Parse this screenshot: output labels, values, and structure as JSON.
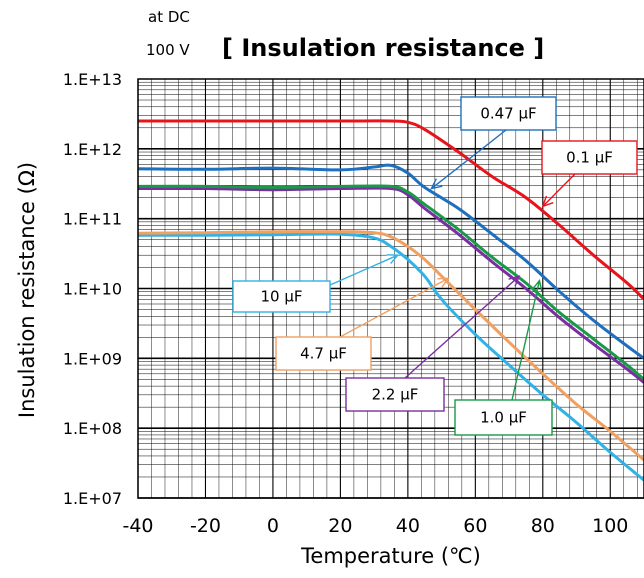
{
  "chart_data": {
    "type": "line",
    "title": "[ Insulation resistance ]",
    "subtitle_line1": "at DC",
    "subtitle_line2": "100 V",
    "xlabel": "Temperature (℃)",
    "ylabel": "Insulation resistance (Ω)",
    "xlim": [
      -40,
      110
    ],
    "ylim_exponents": [
      7,
      13
    ],
    "y_scale": "log",
    "grid": true,
    "x_ticks": [
      "-40",
      "-20",
      "0",
      "20",
      "40",
      "60",
      "80",
      "100"
    ],
    "y_ticks": [
      "1.E+07",
      "1.E+08",
      "1.E+09",
      "1.E+10",
      "1.E+11",
      "1.E+12",
      "1.E+13"
    ],
    "series": [
      {
        "name": "0.1 μF",
        "color": "#e8141c",
        "x": [
          -40,
          -20,
          0,
          20,
          35,
          40,
          45,
          55,
          65,
          75,
          85,
          95,
          105,
          110
        ],
        "y": [
          2500000000000.0,
          2500000000000.0,
          2500000000000.0,
          2500000000000.0,
          2500000000000.0,
          2400000000000.0,
          1900000000000.0,
          900000000000.0,
          400000000000.0,
          200000000000.0,
          80000000000.0,
          30000000000.0,
          12000000000.0,
          7000000000.0
        ]
      },
      {
        "name": "0.47 μF",
        "color": "#1f6fbf",
        "x": [
          -40,
          -20,
          0,
          20,
          30,
          35,
          40,
          45,
          55,
          65,
          75,
          85,
          95,
          105,
          110
        ],
        "y": [
          520000000000.0,
          510000000000.0,
          530000000000.0,
          500000000000.0,
          550000000000.0,
          580000000000.0,
          450000000000.0,
          280000000000.0,
          140000000000.0,
          60000000000.0,
          25000000000.0,
          9000000000.0,
          3500000000.0,
          1500000000.0,
          1000000000.0
        ]
      },
      {
        "name": "2.2 μF",
        "color": "#7a2fa0",
        "x": [
          -40,
          -20,
          0,
          20,
          35,
          40,
          45,
          55,
          65,
          75,
          85,
          95,
          105,
          110
        ],
        "y": [
          270000000000.0,
          270000000000.0,
          260000000000.0,
          270000000000.0,
          270000000000.0,
          220000000000.0,
          140000000000.0,
          60000000000.0,
          24000000000.0,
          10000000000.0,
          3800000000.0,
          1600000000.0,
          700000000.0,
          450000000.0
        ]
      },
      {
        "name": "1.0 μF",
        "color": "#1a9a48",
        "x": [
          -40,
          -20,
          0,
          20,
          35,
          40,
          45,
          55,
          65,
          75,
          85,
          95,
          105,
          110
        ],
        "y": [
          290000000000.0,
          290000000000.0,
          280000000000.0,
          290000000000.0,
          290000000000.0,
          240000000000.0,
          160000000000.0,
          70000000000.0,
          28000000000.0,
          12000000000.0,
          4500000000.0,
          1900000000.0,
          800000000.0,
          500000000.0
        ]
      },
      {
        "name": "10 μF",
        "color": "#30b2e6",
        "x": [
          -40,
          -20,
          0,
          20,
          30,
          35,
          40,
          45,
          50,
          60,
          70,
          80,
          90,
          100,
          110
        ],
        "y": [
          58000000000.0,
          58000000000.0,
          59000000000.0,
          60000000000.0,
          53000000000.0,
          40000000000.0,
          26000000000.0,
          15000000000.0,
          7000000000.0,
          2200000000.0,
          800000000.0,
          300000000.0,
          120000000.0,
          45000000.0,
          18000000.0
        ]
      },
      {
        "name": "4.7 μF",
        "color": "#f0a060",
        "x": [
          -40,
          -20,
          0,
          20,
          30,
          35,
          40,
          45,
          50,
          60,
          70,
          80,
          90,
          100,
          110
        ],
        "y": [
          62000000000.0,
          63000000000.0,
          65000000000.0,
          65000000000.0,
          63000000000.0,
          55000000000.0,
          40000000000.0,
          26000000000.0,
          15000000000.0,
          5000000000.0,
          1700000000.0,
          600000000.0,
          220000000.0,
          90000000.0,
          35000000.0
        ]
      }
    ],
    "callouts": [
      {
        "label": "0.47 μF",
        "color": "#1f6fbf",
        "target": [
          47,
          270000000000.0
        ]
      },
      {
        "label": "0.1 μF",
        "color": "#e8141c",
        "target": [
          80,
          150000000000.0
        ]
      },
      {
        "label": "10 μF",
        "color": "#30b2e6",
        "target": [
          37,
          30000000000.0
        ]
      },
      {
        "label": "4.7 μF",
        "color": "#f0a060",
        "target": [
          52,
          14000000000.0
        ]
      },
      {
        "label": "2.2 μF",
        "color": "#7a2fa0",
        "target": [
          73,
          15000000000.0
        ]
      },
      {
        "label": "1.0 μF",
        "color": "#1a9a48",
        "target": [
          79,
          13000000000.0
        ]
      }
    ]
  }
}
